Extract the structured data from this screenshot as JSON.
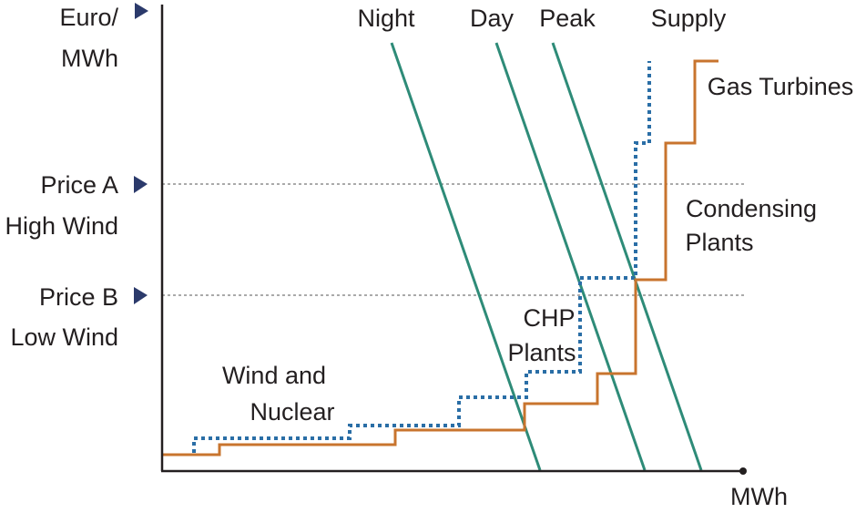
{
  "chart_data": {
    "type": "line",
    "title": "",
    "axes": {
      "y_label_line1": "Euro/",
      "y_label_line2": "MWh",
      "x_label": "MWh"
    },
    "price_markers": [
      {
        "line1": "Price A",
        "line2": "High Wind"
      },
      {
        "line1": "Price B",
        "line2": "Low Wind"
      }
    ],
    "demand_curves": [
      {
        "name": "Night"
      },
      {
        "name": "Day"
      },
      {
        "name": "Peak"
      }
    ],
    "supply_curve_label": "Supply",
    "plant_labels": {
      "wind_nuclear_line1": "Wind and",
      "wind_nuclear_line2": "Nuclear",
      "chp_line1": "CHP",
      "chp_line2": "Plants",
      "condensing_line1": "Condensing",
      "condensing_line2": "Plants",
      "gas": "Gas Turbines"
    },
    "colors": {
      "supply_low_wind": "#c8742e",
      "supply_high_wind": "#2a6ea6",
      "demand": "#2e8b78",
      "axis": "#231f20",
      "gridline": "#555555",
      "marker": "#2b3a6b"
    }
  }
}
